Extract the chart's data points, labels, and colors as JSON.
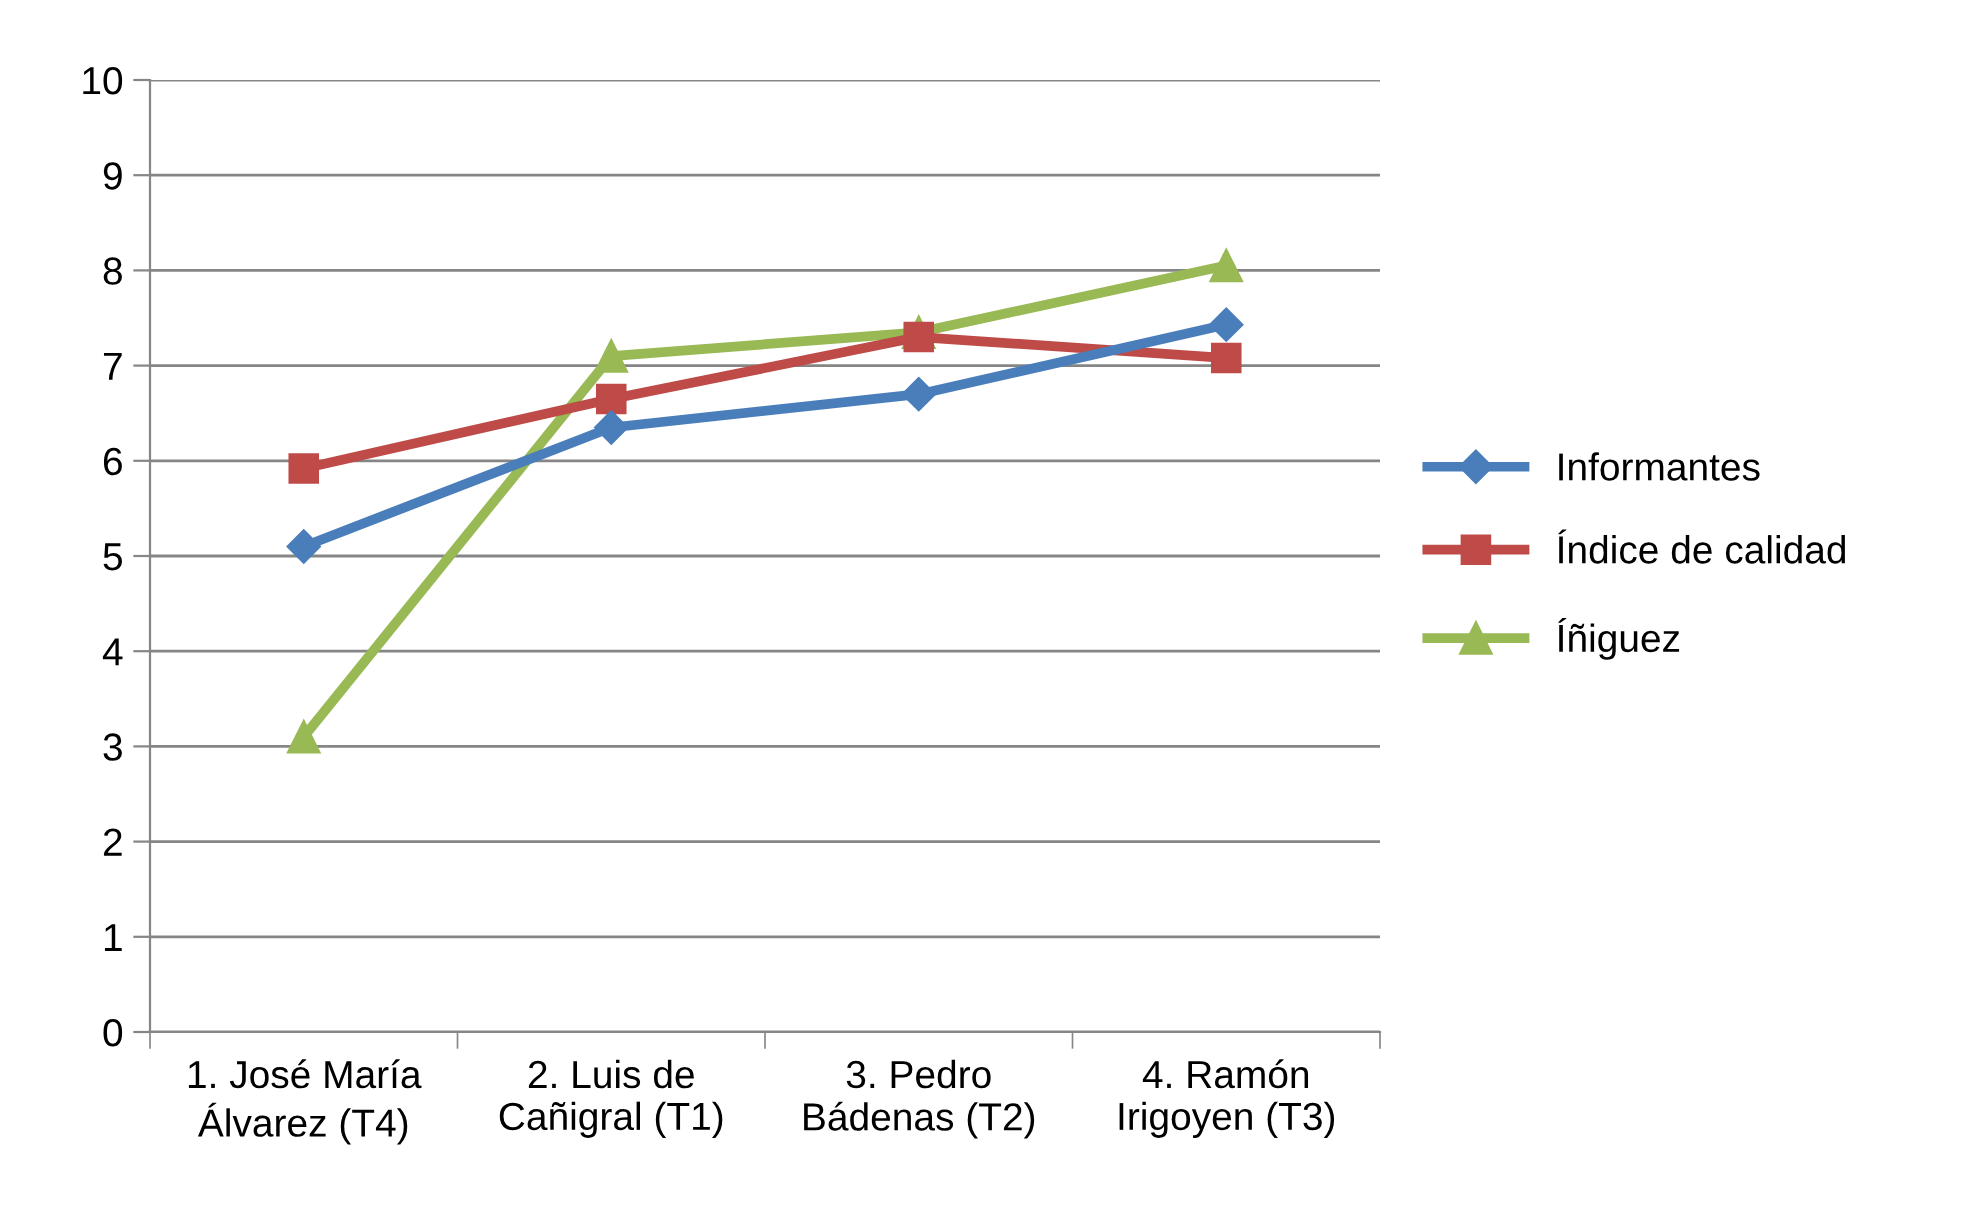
{
  "chart_data": {
    "type": "line",
    "categories": [
      "1. José María\nÁlvarez (T4)",
      "2. Luis de\nCañigral (T1)",
      "3. Pedro\nBádenas (T2)",
      "4. Ramón\nIrigoyen (T3)"
    ],
    "series": [
      {
        "name": "Informantes",
        "color": "#4a7ebb",
        "marker": "diamond",
        "values": [
          5.1,
          6.35,
          6.7,
          7.43
        ]
      },
      {
        "name": "Índice de calidad",
        "color": "#be4b48",
        "marker": "square",
        "values": [
          5.92,
          6.65,
          7.3,
          7.08
        ]
      },
      {
        "name": "Íñiguez",
        "color": "#98b954",
        "marker": "triangle",
        "values": [
          3.1,
          7.1,
          7.35,
          8.05
        ]
      }
    ],
    "ylim": [
      0,
      10
    ],
    "yticks": [
      0,
      1,
      2,
      3,
      4,
      5,
      6,
      7,
      8,
      9,
      10
    ],
    "grid": "y",
    "legend": "right",
    "line_style": "solid"
  }
}
